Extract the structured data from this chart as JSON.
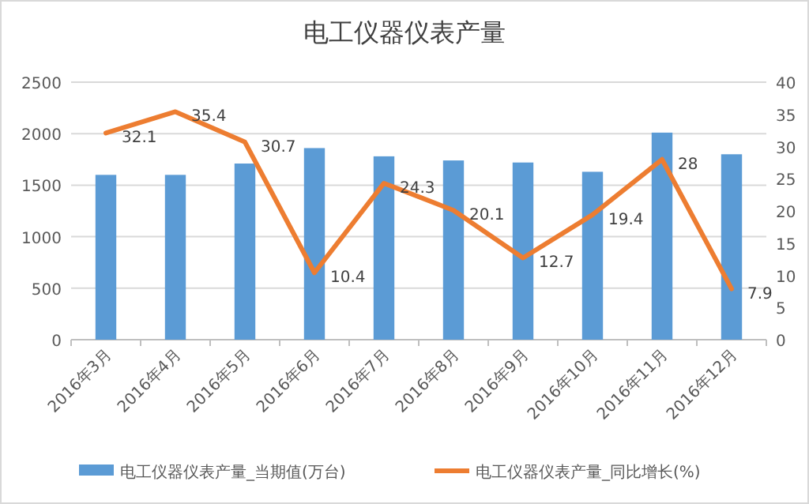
{
  "chart_data": {
    "type": "bar",
    "title": "电工仪器仪表产量",
    "categories": [
      "2016年3月",
      "2016年4月",
      "2016年5月",
      "2016年6月",
      "2016年7月",
      "2016年8月",
      "2016年9月",
      "2016年10月",
      "2016年11月",
      "2016年12月"
    ],
    "series": [
      {
        "name": "电工仪器仪表产量_当期值(万台)",
        "color": "#5b9bd5",
        "values": [
          1600,
          1600,
          1710,
          1860,
          1780,
          1740,
          1720,
          1630,
          2010,
          1800
        ]
      },
      {
        "name": "电工仪器仪表产量_同比增长(%)",
        "type": "line",
        "axis": "y2",
        "color": "#ed7d31",
        "values": [
          32.1,
          35.4,
          30.7,
          10.4,
          24.3,
          20.1,
          12.7,
          19.4,
          28,
          7.9
        ],
        "value_labels": [
          "32.1",
          "35.4",
          "30.7",
          "10.4",
          "24.3",
          "20.1",
          "12.7",
          "19.4",
          "28",
          "7.9"
        ]
      }
    ],
    "ylim": [
      0,
      2500
    ],
    "yticks": [
      0,
      500,
      1000,
      1500,
      2000,
      2500
    ],
    "y2lim": [
      0,
      40
    ],
    "y2ticks": [
      0,
      5,
      10,
      15,
      20,
      25,
      30,
      35,
      40
    ],
    "grid": "y",
    "legend": "bottom",
    "marker": "none"
  }
}
